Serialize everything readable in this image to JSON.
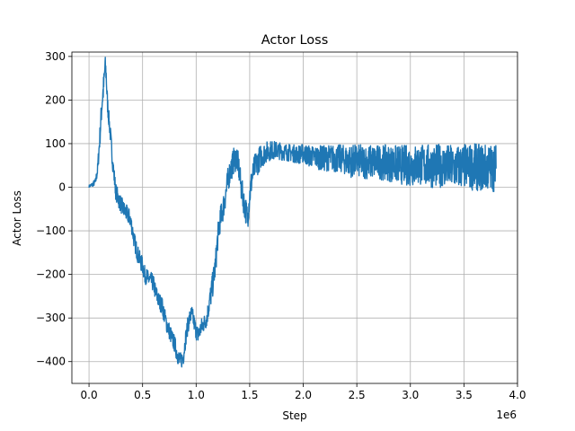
{
  "chart_data": {
    "type": "line",
    "title": "Actor Loss",
    "xlabel": "Step",
    "ylabel": "Actor Loss",
    "x_offset_label": "1e6",
    "xlim": [
      -0.16,
      4.0
    ],
    "ylim": [
      -450,
      310
    ],
    "grid": true,
    "line_color": "#1f77b4",
    "x_ticks": [
      0.0,
      0.5,
      1.0,
      1.5,
      2.0,
      2.5,
      3.0,
      3.5,
      4.0
    ],
    "x_tick_labels": [
      "0.0",
      "0.5",
      "1.0",
      "1.5",
      "2.0",
      "2.5",
      "3.0",
      "3.5",
      "4.0"
    ],
    "y_ticks": [
      -400,
      -300,
      -200,
      -100,
      0,
      100,
      200,
      300
    ],
    "y_tick_labels": [
      "−400",
      "−300",
      "−200",
      "−100",
      "0",
      "100",
      "200",
      "300"
    ],
    "series": [
      {
        "x": [
          0.0,
          0.03,
          0.06,
          0.08,
          0.1,
          0.12,
          0.14,
          0.15,
          0.16,
          0.17,
          0.18,
          0.2,
          0.22,
          0.25,
          0.28,
          0.3,
          0.32,
          0.35,
          0.38,
          0.4,
          0.42,
          0.45,
          0.48,
          0.5,
          0.52,
          0.55,
          0.58,
          0.6,
          0.62,
          0.65,
          0.68,
          0.7,
          0.72,
          0.75,
          0.78,
          0.8,
          0.82,
          0.85,
          0.88,
          0.9,
          0.92,
          0.94,
          0.96,
          0.98,
          1.0,
          1.02,
          1.05,
          1.08,
          1.1,
          1.12,
          1.15,
          1.18,
          1.2,
          1.22,
          1.25,
          1.28,
          1.3,
          1.32,
          1.35,
          1.38,
          1.4,
          1.42,
          1.45,
          1.48,
          1.5,
          1.52,
          1.55,
          1.58,
          1.6,
          1.65,
          1.7,
          1.75,
          1.8,
          1.85,
          1.9,
          1.95,
          2.0,
          2.05,
          2.1,
          2.15,
          2.2,
          2.25,
          2.3,
          2.35,
          2.4,
          2.45,
          2.5,
          2.6,
          2.7,
          2.8,
          2.9,
          3.0,
          3.1,
          3.2,
          3.3,
          3.4,
          3.5,
          3.6,
          3.7,
          3.8
        ],
        "y": [
          2,
          6,
          12,
          40,
          110,
          190,
          240,
          280,
          260,
          200,
          170,
          120,
          60,
          -10,
          -30,
          -40,
          -50,
          -60,
          -70,
          -90,
          -120,
          -150,
          -170,
          -180,
          -200,
          -210,
          -215,
          -220,
          -240,
          -260,
          -270,
          -290,
          -310,
          -330,
          -350,
          -360,
          -380,
          -400,
          -390,
          -350,
          -320,
          -300,
          -290,
          -310,
          -330,
          -340,
          -320,
          -310,
          -300,
          -270,
          -230,
          -180,
          -120,
          -80,
          -50,
          -10,
          20,
          40,
          60,
          70,
          40,
          0,
          -40,
          -70,
          -20,
          20,
          50,
          60,
          70,
          80,
          85,
          85,
          82,
          80,
          78,
          75,
          78,
          72,
          70,
          68,
          66,
          68,
          65,
          66,
          62,
          60,
          60,
          58,
          58,
          55,
          52,
          50,
          52,
          48,
          50,
          45,
          48,
          46,
          45,
          45
        ],
        "band": [
          3,
          5,
          8,
          15,
          25,
          30,
          30,
          25,
          25,
          25,
          20,
          20,
          20,
          20,
          20,
          20,
          20,
          20,
          20,
          20,
          20,
          20,
          20,
          20,
          20,
          20,
          20,
          20,
          20,
          20,
          20,
          20,
          20,
          20,
          20,
          20,
          20,
          20,
          20,
          20,
          20,
          20,
          20,
          20,
          20,
          20,
          20,
          20,
          20,
          25,
          30,
          30,
          30,
          30,
          30,
          30,
          30,
          30,
          30,
          30,
          30,
          30,
          30,
          30,
          30,
          30,
          30,
          30,
          28,
          25,
          22,
          20,
          20,
          20,
          20,
          22,
          22,
          25,
          25,
          28,
          30,
          30,
          32,
          32,
          35,
          38,
          38,
          40,
          40,
          42,
          45,
          48,
          48,
          50,
          50,
          52,
          52,
          54,
          55,
          55
        ]
      }
    ]
  }
}
